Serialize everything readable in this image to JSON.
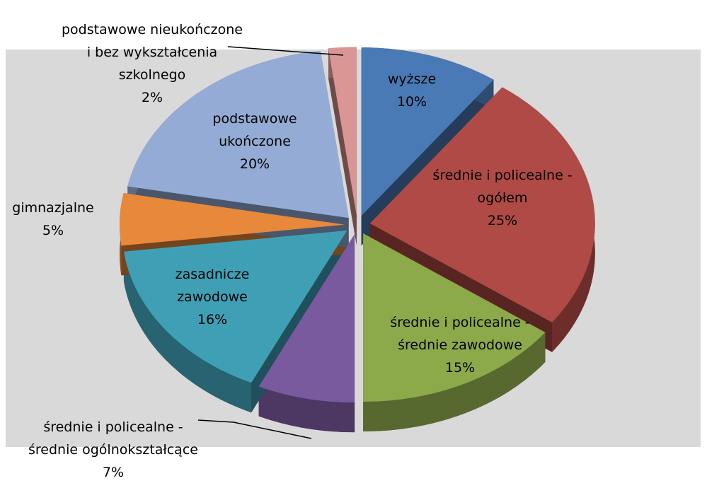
{
  "chart_data": {
    "type": "pie",
    "categories": [
      "wyższe",
      "średnie i policealne - ogółem",
      "średnie i policealne - średnie zawodowe",
      "średnie i policealne - średnie ogólnokształcące",
      "zasadnicze zawodowe",
      "gimnazjalne",
      "podstawowe ukończone",
      "podstawowe nieukończone i bez wykształcenia szkolnego"
    ],
    "values": [
      10,
      25,
      15,
      7,
      16,
      5,
      20,
      2
    ],
    "value_labels": [
      "10%",
      "25%",
      "15%",
      "7%",
      "16%",
      "5%",
      "20%",
      "2%"
    ],
    "colors": [
      "#4a7ab5",
      "#b04a46",
      "#8daa4a",
      "#7a5a9e",
      "#3fa0b5",
      "#e8883a",
      "#94abd6",
      "#d99694"
    ]
  }
}
